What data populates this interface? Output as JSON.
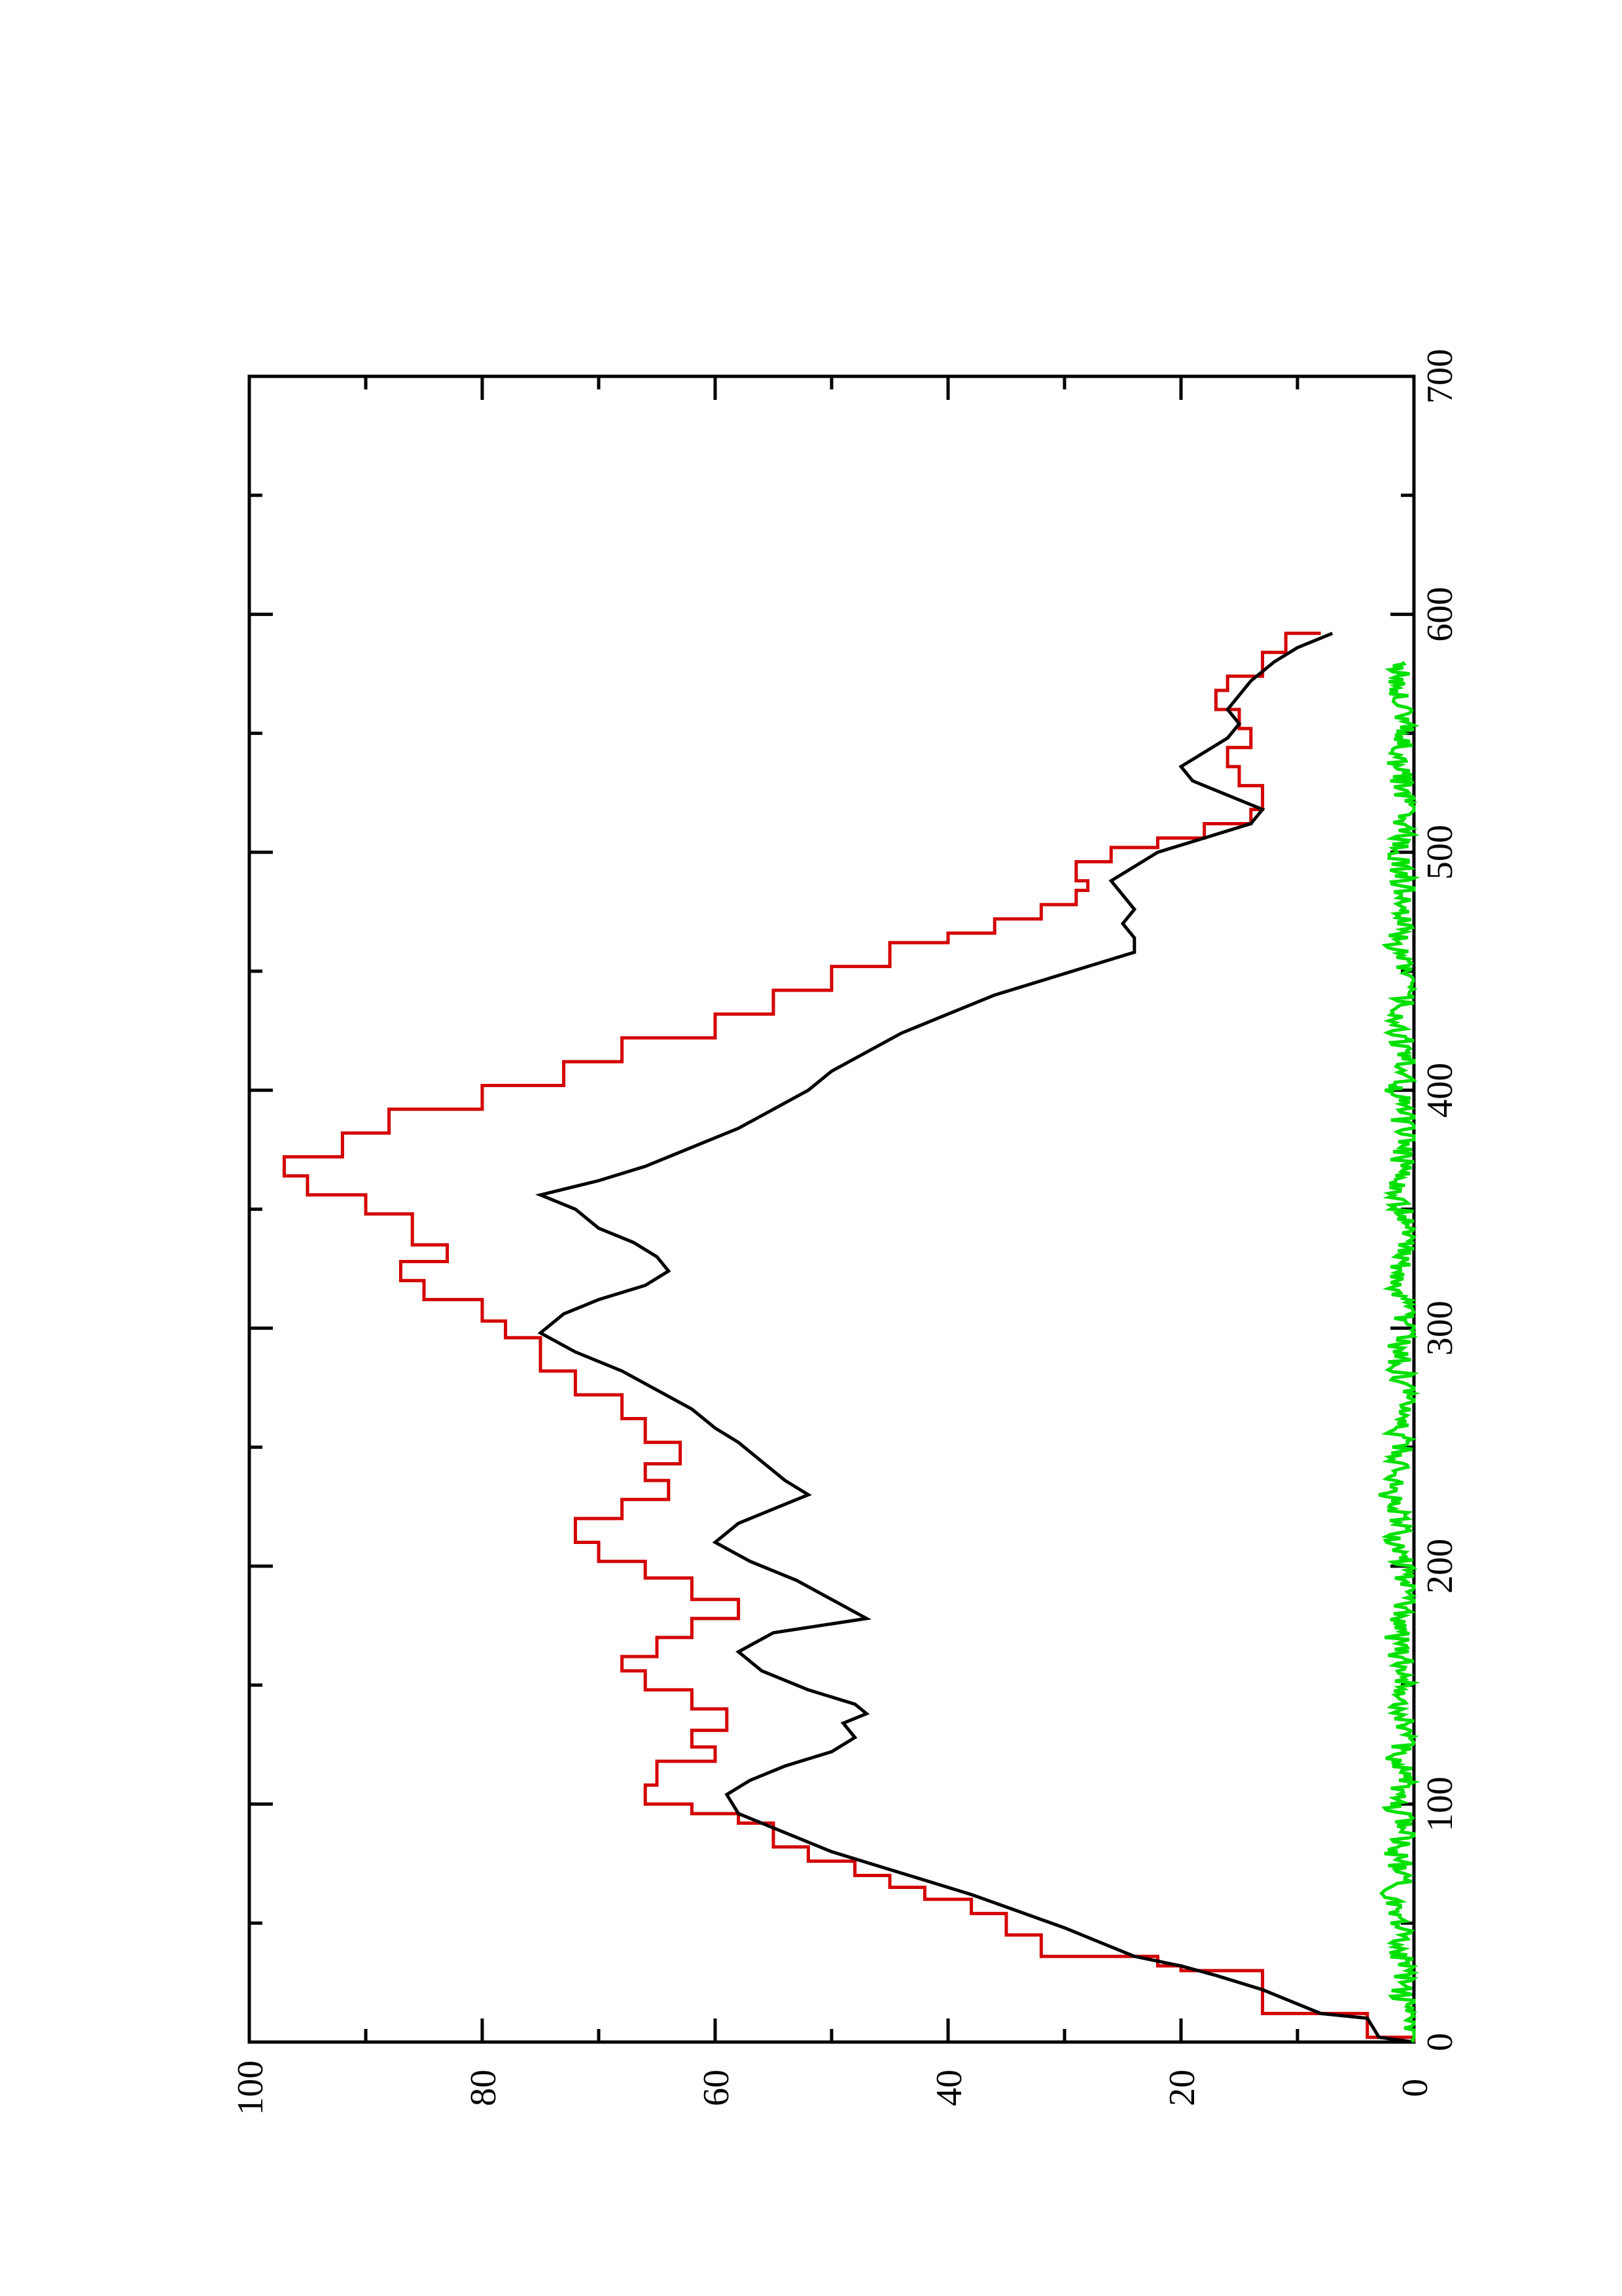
{
  "chart_data": {
    "type": "line",
    "title": "",
    "xlabel": "",
    "ylabel": "",
    "orientation": "rotated-90-ccw",
    "xlim": [
      0,
      700
    ],
    "ylim": [
      0,
      100
    ],
    "x_ticks": [
      "0",
      "100",
      "200",
      "300",
      "400",
      "500",
      "600",
      "700"
    ],
    "x_minor_ticks": [
      50,
      150,
      250,
      350,
      450,
      550,
      650
    ],
    "y_ticks": [
      "0",
      "20",
      "40",
      "60",
      "80",
      "100"
    ],
    "y_minor_ticks": [
      10,
      30,
      50,
      70,
      90
    ],
    "grid": false,
    "legend": "none",
    "series": [
      {
        "color": "#d40000",
        "style": "step",
        "points": [
          [
            0,
            0
          ],
          [
            2,
            4
          ],
          [
            10,
            4
          ],
          [
            12,
            13
          ],
          [
            22,
            13
          ],
          [
            30,
            20
          ],
          [
            32,
            22
          ],
          [
            36,
            32
          ],
          [
            45,
            35
          ],
          [
            54,
            38
          ],
          [
            60,
            42
          ],
          [
            65,
            45
          ],
          [
            70,
            48
          ],
          [
            76,
            52
          ],
          [
            82,
            55
          ],
          [
            92,
            58
          ],
          [
            96,
            62
          ],
          [
            100,
            66
          ],
          [
            108,
            65
          ],
          [
            118,
            60
          ],
          [
            124,
            62
          ],
          [
            131,
            59
          ],
          [
            140,
            62
          ],
          [
            148,
            66
          ],
          [
            156,
            68
          ],
          [
            162,
            65
          ],
          [
            170,
            62
          ],
          [
            178,
            58
          ],
          [
            186,
            62
          ],
          [
            195,
            66
          ],
          [
            202,
            70
          ],
          [
            210,
            72
          ],
          [
            220,
            68
          ],
          [
            228,
            64
          ],
          [
            236,
            66
          ],
          [
            243,
            63
          ],
          [
            252,
            66
          ],
          [
            262,
            68
          ],
          [
            272,
            72
          ],
          [
            282,
            75
          ],
          [
            296,
            78
          ],
          [
            303,
            80
          ],
          [
            312,
            85
          ],
          [
            320,
            87
          ],
          [
            328,
            83
          ],
          [
            335,
            86
          ],
          [
            348,
            90
          ],
          [
            356,
            95
          ],
          [
            364,
            97
          ],
          [
            372,
            92
          ],
          [
            382,
            88
          ],
          [
            392,
            80
          ],
          [
            402,
            73
          ],
          [
            412,
            68
          ],
          [
            422,
            60
          ],
          [
            432,
            55
          ],
          [
            442,
            50
          ],
          [
            452,
            45
          ],
          [
            462,
            40
          ],
          [
            466,
            36
          ],
          [
            472,
            32
          ],
          [
            478,
            29
          ],
          [
            484,
            28
          ],
          [
            488,
            29
          ],
          [
            496,
            26
          ],
          [
            502,
            22
          ],
          [
            506,
            18
          ],
          [
            512,
            14
          ],
          [
            518,
            13
          ],
          [
            528,
            15
          ],
          [
            536,
            16
          ],
          [
            544,
            14
          ],
          [
            552,
            15
          ],
          [
            560,
            17
          ],
          [
            568,
            16
          ],
          [
            574,
            13
          ],
          [
            584,
            11
          ],
          [
            592,
            8
          ]
        ]
      },
      {
        "color": "#000000",
        "style": "line",
        "points": [
          [
            0,
            0
          ],
          [
            2,
            3
          ],
          [
            10,
            4
          ],
          [
            12,
            8
          ],
          [
            22,
            13
          ],
          [
            28,
            17
          ],
          [
            32,
            20
          ],
          [
            36,
            24
          ],
          [
            42,
            27
          ],
          [
            48,
            30
          ],
          [
            55,
            34
          ],
          [
            62,
            38
          ],
          [
            68,
            42
          ],
          [
            74,
            46
          ],
          [
            80,
            50
          ],
          [
            88,
            54
          ],
          [
            96,
            58
          ],
          [
            104,
            59
          ],
          [
            110,
            57
          ],
          [
            116,
            54
          ],
          [
            122,
            50
          ],
          [
            128,
            48
          ],
          [
            134,
            49
          ],
          [
            138,
            47
          ],
          [
            142,
            48
          ],
          [
            148,
            52
          ],
          [
            156,
            56
          ],
          [
            164,
            58
          ],
          [
            172,
            55
          ],
          [
            178,
            47
          ],
          [
            186,
            50
          ],
          [
            194,
            53
          ],
          [
            202,
            57
          ],
          [
            210,
            60
          ],
          [
            218,
            58
          ],
          [
            224,
            55
          ],
          [
            230,
            52
          ],
          [
            236,
            54
          ],
          [
            244,
            56
          ],
          [
            252,
            58
          ],
          [
            258,
            60
          ],
          [
            266,
            62
          ],
          [
            274,
            65
          ],
          [
            282,
            68
          ],
          [
            290,
            72
          ],
          [
            298,
            75
          ],
          [
            306,
            73
          ],
          [
            312,
            70
          ],
          [
            318,
            66
          ],
          [
            324,
            64
          ],
          [
            330,
            65
          ],
          [
            336,
            67
          ],
          [
            342,
            70
          ],
          [
            350,
            72
          ],
          [
            356,
            75
          ],
          [
            362,
            70
          ],
          [
            368,
            66
          ],
          [
            376,
            62
          ],
          [
            384,
            58
          ],
          [
            392,
            55
          ],
          [
            400,
            52
          ],
          [
            408,
            50
          ],
          [
            416,
            47
          ],
          [
            424,
            44
          ],
          [
            432,
            40
          ],
          [
            440,
            36
          ],
          [
            446,
            32
          ],
          [
            452,
            28
          ],
          [
            458,
            24
          ],
          [
            464,
            24
          ],
          [
            470,
            25
          ],
          [
            476,
            24
          ],
          [
            482,
            25
          ],
          [
            488,
            26
          ],
          [
            494,
            24
          ],
          [
            500,
            22
          ],
          [
            506,
            18
          ],
          [
            512,
            14
          ],
          [
            518,
            13
          ],
          [
            524,
            16
          ],
          [
            530,
            19
          ],
          [
            536,
            20
          ],
          [
            542,
            18
          ],
          [
            548,
            16
          ],
          [
            554,
            15
          ],
          [
            560,
            16
          ],
          [
            566,
            15
          ],
          [
            572,
            14
          ],
          [
            580,
            12
          ],
          [
            586,
            10
          ],
          [
            592,
            7
          ]
        ]
      },
      {
        "color": "#00e000",
        "style": "noise",
        "points": [
          [
            0,
            0
          ],
          [
            10,
            0
          ],
          [
            20,
            1
          ],
          [
            30,
            0.5
          ],
          [
            40,
            1.5
          ],
          [
            50,
            1
          ],
          [
            60,
            2
          ],
          [
            70,
            1
          ],
          [
            80,
            1.5
          ],
          [
            90,
            0.5
          ],
          [
            100,
            2
          ],
          [
            110,
            1
          ],
          [
            120,
            1.5
          ],
          [
            130,
            0.5
          ],
          [
            140,
            1
          ],
          [
            150,
            0.5
          ],
          [
            160,
            1
          ],
          [
            170,
            1.5
          ],
          [
            180,
            1
          ],
          [
            190,
            0.5
          ],
          [
            200,
            1
          ],
          [
            210,
            1.5
          ],
          [
            220,
            1
          ],
          [
            230,
            2
          ],
          [
            240,
            1.5
          ],
          [
            250,
            1
          ],
          [
            260,
            1.5
          ],
          [
            270,
            0.5
          ],
          [
            280,
            1
          ],
          [
            290,
            1.5
          ],
          [
            300,
            0.5
          ],
          [
            310,
            1
          ],
          [
            320,
            1.5
          ],
          [
            330,
            1
          ],
          [
            340,
            0.5
          ],
          [
            350,
            1
          ],
          [
            360,
            1.5
          ],
          [
            370,
            1
          ],
          [
            380,
            0.5
          ],
          [
            390,
            1
          ],
          [
            400,
            1.5
          ],
          [
            410,
            0.5
          ],
          [
            420,
            1
          ],
          [
            430,
            1.5
          ],
          [
            440,
            0.5
          ],
          [
            450,
            1
          ],
          [
            460,
            1.5
          ],
          [
            470,
            1
          ],
          [
            480,
            0.5
          ],
          [
            490,
            1
          ],
          [
            500,
            1.5
          ],
          [
            510,
            1
          ],
          [
            520,
            0.5
          ],
          [
            530,
            1
          ],
          [
            540,
            1.5
          ],
          [
            550,
            0.5
          ],
          [
            560,
            1
          ],
          [
            570,
            1.5
          ],
          [
            580,
            1
          ]
        ]
      }
    ]
  }
}
